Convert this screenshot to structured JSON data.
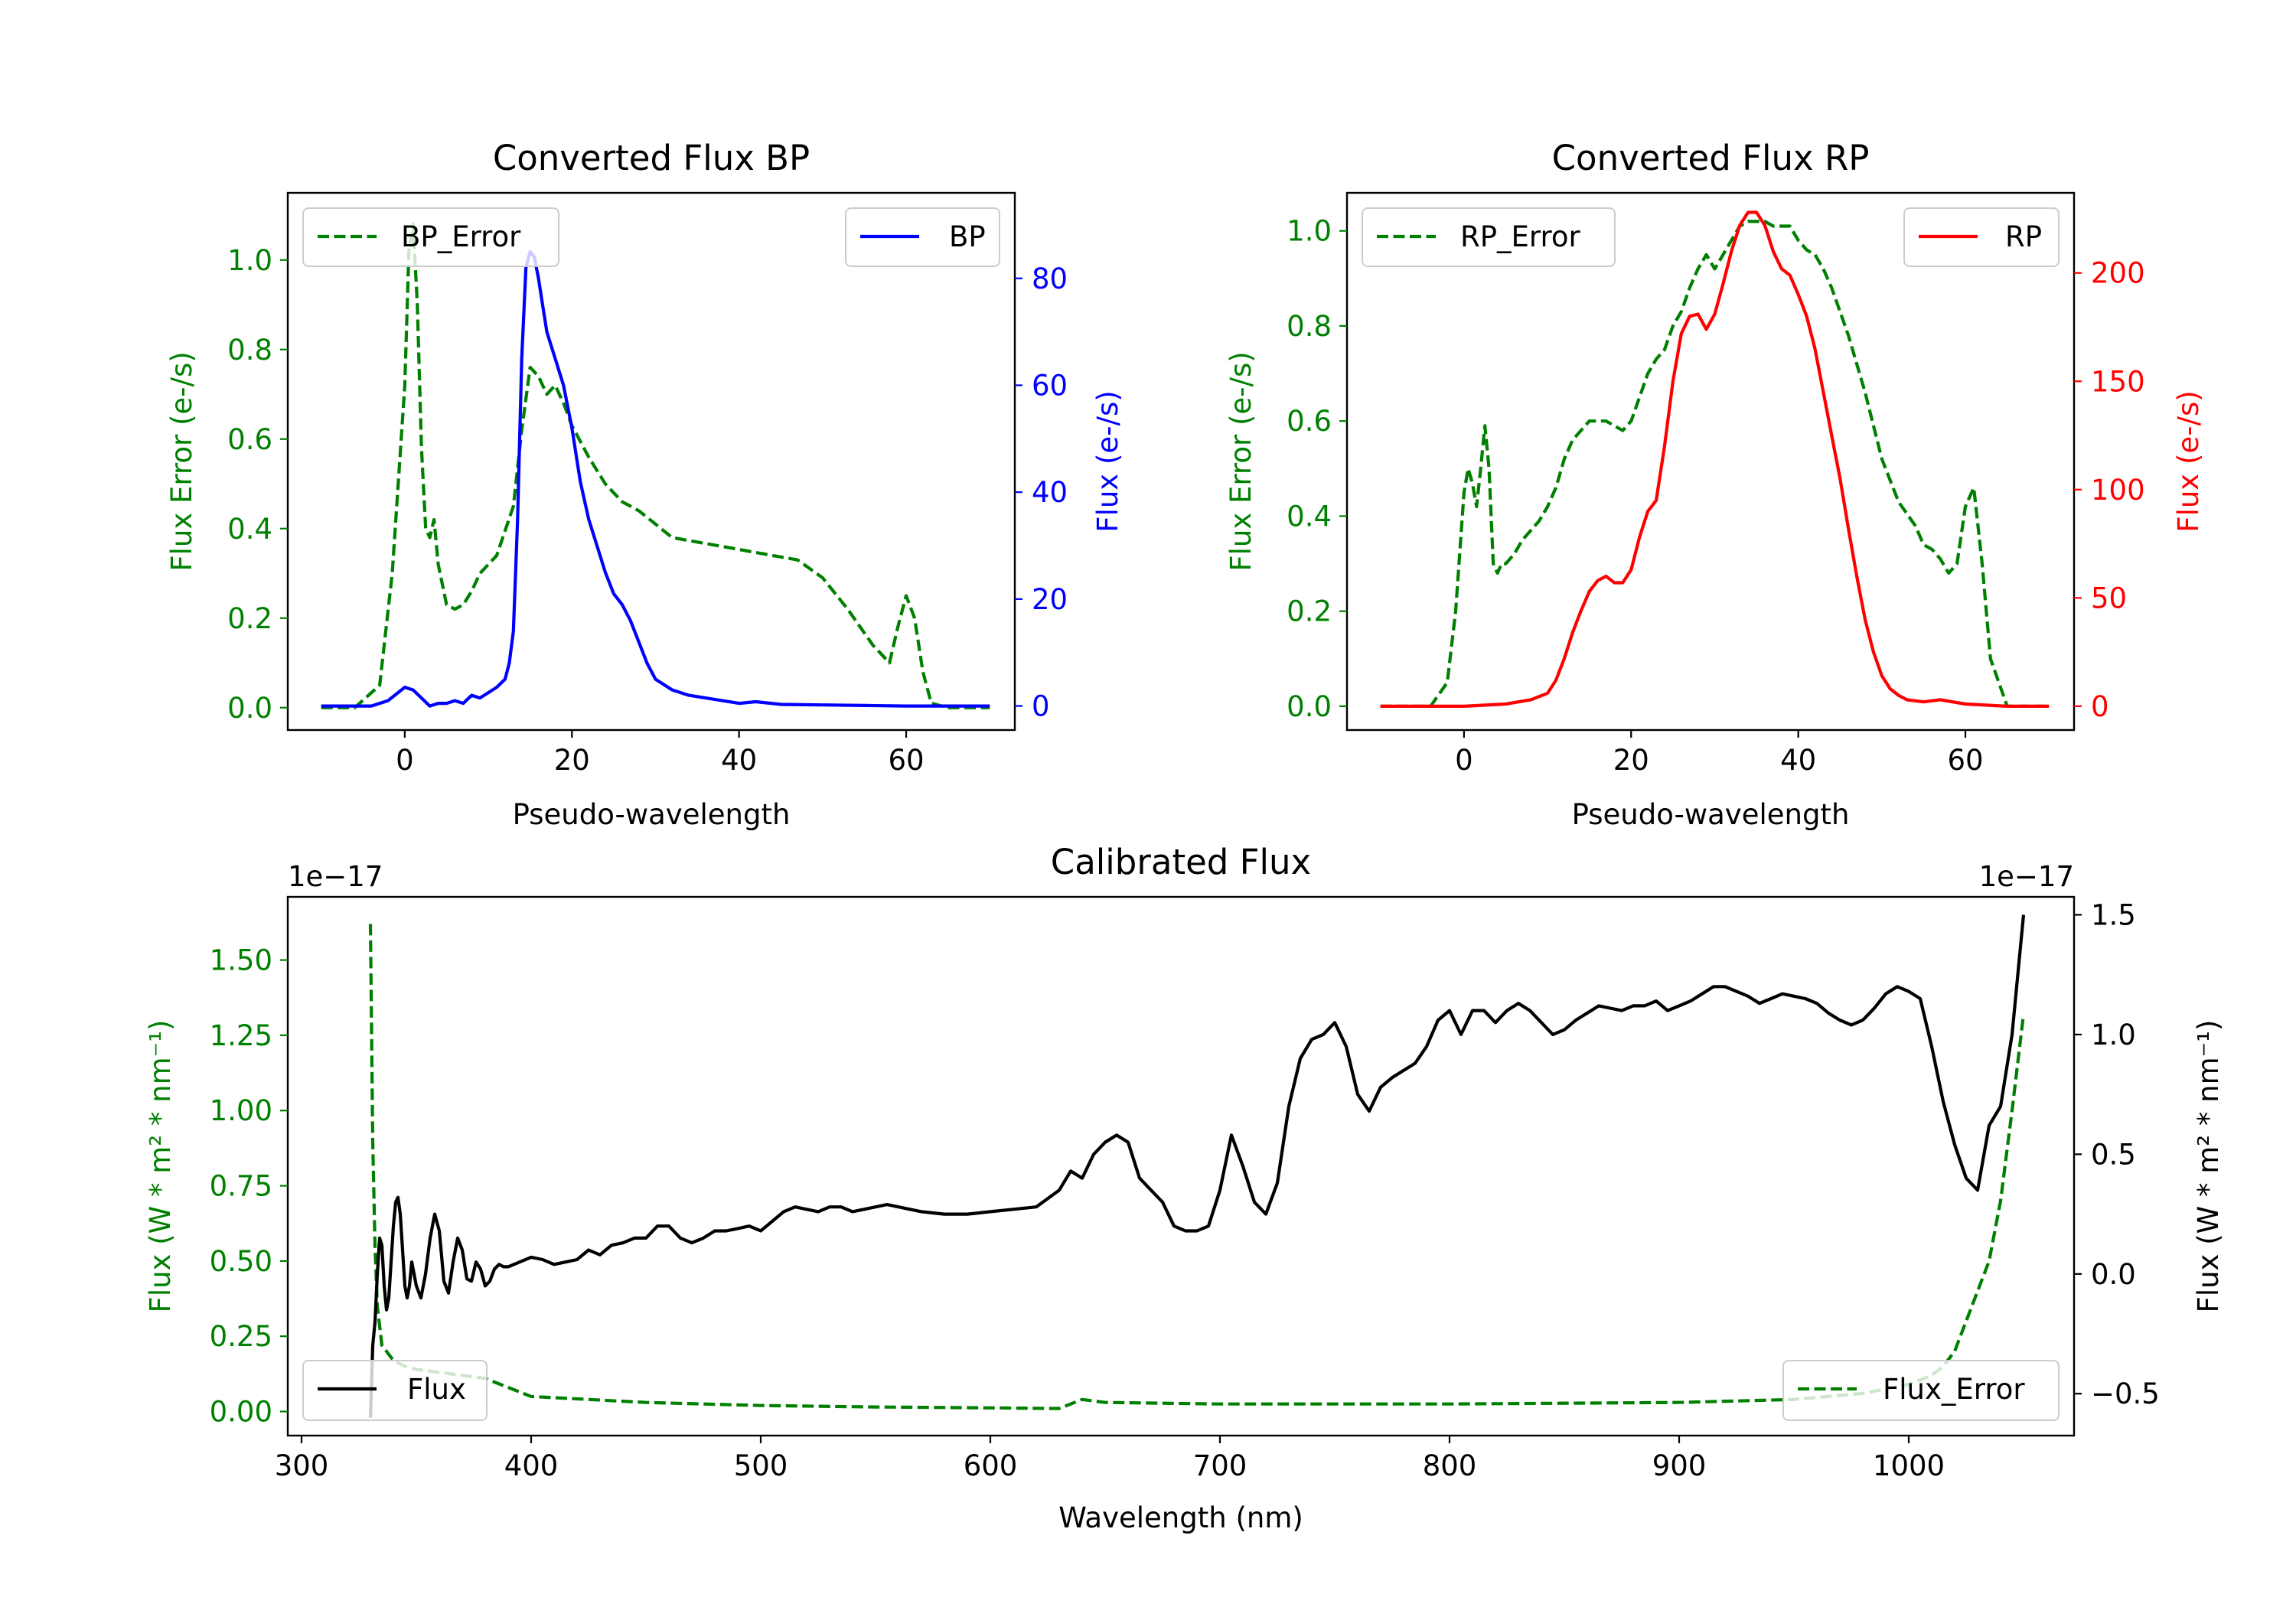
{
  "colors": {
    "error": "#008000",
    "bp": "#0000ff",
    "rp": "#ff0000",
    "flux": "#000000",
    "axis": "#000000"
  },
  "chart_data": [
    {
      "id": "bp",
      "type": "line",
      "title": "Converted Flux BP",
      "xlabel": "Pseudo-wavelength",
      "ylabel_left": "Flux Error (e-/s)",
      "ylabel_right": "Flux (e-/s)",
      "xlim": [
        -14,
        73
      ],
      "ylim_left": [
        -0.05,
        1.15
      ],
      "ylim_right": [
        -4.5,
        96
      ],
      "xticks": [
        0,
        20,
        40,
        60
      ],
      "yticks_left": [
        0.0,
        0.2,
        0.4,
        0.6,
        0.8,
        1.0
      ],
      "yticks_left_labels": [
        "0.0",
        "0.2",
        "0.4",
        "0.6",
        "0.8",
        "1.0"
      ],
      "yticks_right": [
        0,
        20,
        40,
        60,
        80
      ],
      "yticks_right_labels": [
        "0",
        "20",
        "40",
        "60",
        "80"
      ],
      "legend_left": "BP_Error",
      "legend_right": "BP",
      "series": [
        {
          "name": "BP_Error",
          "axis": "left",
          "style": "dashed",
          "color": "#008000",
          "x": [
            -10,
            -6,
            -3,
            -1.5,
            0,
            0.5,
            1,
            1.5,
            2,
            2.5,
            3,
            3.5,
            4,
            5,
            6,
            7,
            8,
            9,
            11,
            13,
            14,
            15,
            16,
            17,
            18,
            19,
            20,
            22,
            24,
            26,
            28,
            30,
            32,
            35,
            38,
            41,
            44,
            47,
            50,
            53,
            56,
            57,
            58,
            59,
            60,
            61,
            62,
            63,
            65,
            68,
            70
          ],
          "y": [
            0.0,
            0.0,
            0.05,
            0.3,
            0.72,
            1.02,
            1.08,
            0.9,
            0.58,
            0.4,
            0.38,
            0.42,
            0.32,
            0.23,
            0.22,
            0.23,
            0.26,
            0.3,
            0.34,
            0.45,
            0.62,
            0.76,
            0.74,
            0.7,
            0.72,
            0.68,
            0.63,
            0.56,
            0.5,
            0.46,
            0.44,
            0.41,
            0.38,
            0.37,
            0.36,
            0.35,
            0.34,
            0.33,
            0.29,
            0.22,
            0.14,
            0.12,
            0.1,
            0.18,
            0.25,
            0.2,
            0.08,
            0.01,
            0.0,
            0.0,
            0.0
          ]
        },
        {
          "name": "BP",
          "axis": "right",
          "style": "solid",
          "color": "#0000ff",
          "x": [
            -10,
            -4,
            -2,
            0,
            1,
            2,
            3,
            4,
            5,
            6,
            7,
            8,
            9,
            10,
            11,
            12,
            12.5,
            13,
            13.5,
            14,
            14.5,
            15,
            15.5,
            16,
            16.5,
            17,
            18,
            19,
            20,
            21,
            22,
            23,
            24,
            25,
            26,
            27,
            28,
            29,
            30,
            32,
            34,
            36,
            38,
            40,
            42,
            45,
            50,
            55,
            60,
            65,
            70
          ],
          "y": [
            0,
            0,
            1,
            3.5,
            3.0,
            1.5,
            0,
            0.5,
            0.5,
            1,
            0.5,
            2,
            1.5,
            2.5,
            3.5,
            5,
            8,
            14,
            35,
            65,
            82,
            85,
            84,
            80,
            75,
            70,
            65,
            60,
            52,
            42,
            35,
            30,
            25,
            21,
            19,
            16,
            12,
            8,
            5,
            3,
            2,
            1.5,
            1,
            0.5,
            0.8,
            0.3,
            0.2,
            0.1,
            0,
            0,
            0
          ]
        }
      ]
    },
    {
      "id": "rp",
      "type": "line",
      "title": "Converted Flux RP",
      "xlabel": "Pseudo-wavelength",
      "ylabel_left": "Flux Error (e-/s)",
      "ylabel_right": "Flux (e-/s)",
      "xlim": [
        -14,
        73
      ],
      "ylim_left": [
        -0.05,
        1.08
      ],
      "ylim_right": [
        -11,
        237
      ],
      "xticks": [
        0,
        20,
        40,
        60
      ],
      "yticks_left": [
        0.0,
        0.2,
        0.4,
        0.6,
        0.8,
        1.0
      ],
      "yticks_left_labels": [
        "0.0",
        "0.2",
        "0.4",
        "0.6",
        "0.8",
        "1.0"
      ],
      "yticks_right": [
        0,
        50,
        100,
        150,
        200
      ],
      "yticks_right_labels": [
        "0",
        "50",
        "100",
        "150",
        "200"
      ],
      "legend_left": "RP_Error",
      "legend_right": "RP",
      "series": [
        {
          "name": "RP_Error",
          "axis": "left",
          "style": "dashed",
          "color": "#008000",
          "x": [
            -10,
            -4,
            -2,
            -1,
            0,
            0.5,
            1,
            1.5,
            2,
            2.5,
            3,
            3.5,
            4,
            4.5,
            5,
            6,
            7,
            8,
            9,
            10,
            11,
            12,
            13,
            14,
            15,
            16,
            17,
            18,
            19,
            20,
            21,
            22,
            23,
            24,
            25,
            26,
            27,
            28,
            29,
            30,
            31,
            32,
            33,
            34,
            35,
            36,
            37,
            38,
            39,
            40,
            41,
            42,
            43,
            44,
            46,
            48,
            50,
            52,
            54,
            55,
            56,
            57,
            58,
            59,
            60,
            61,
            62,
            63,
            65,
            68,
            70
          ],
          "y": [
            0.0,
            0.0,
            0.05,
            0.2,
            0.45,
            0.5,
            0.47,
            0.42,
            0.5,
            0.59,
            0.5,
            0.3,
            0.28,
            0.3,
            0.3,
            0.32,
            0.35,
            0.37,
            0.39,
            0.42,
            0.46,
            0.52,
            0.56,
            0.58,
            0.6,
            0.6,
            0.6,
            0.59,
            0.58,
            0.6,
            0.65,
            0.7,
            0.73,
            0.75,
            0.8,
            0.83,
            0.88,
            0.92,
            0.95,
            0.92,
            0.95,
            0.98,
            1.01,
            1.02,
            1.02,
            1.02,
            1.01,
            1.01,
            1.01,
            0.98,
            0.96,
            0.95,
            0.92,
            0.88,
            0.78,
            0.66,
            0.52,
            0.43,
            0.38,
            0.34,
            0.33,
            0.31,
            0.28,
            0.3,
            0.42,
            0.46,
            0.3,
            0.1,
            0.0,
            0.0,
            0.0
          ]
        },
        {
          "name": "RP",
          "axis": "right",
          "style": "solid",
          "color": "#ff0000",
          "x": [
            -10,
            0,
            5,
            8,
            10,
            11,
            12,
            13,
            14,
            15,
            16,
            17,
            18,
            19,
            20,
            21,
            22,
            23,
            24,
            25,
            26,
            27,
            28,
            29,
            30,
            31,
            32,
            33,
            34,
            35,
            36,
            37,
            38,
            39,
            40,
            41,
            42,
            43,
            44,
            45,
            46,
            47,
            48,
            49,
            50,
            51,
            52,
            53,
            55,
            57,
            60,
            65,
            70
          ],
          "y": [
            0,
            0,
            1,
            3,
            6,
            12,
            22,
            34,
            44,
            53,
            58,
            60,
            57,
            57,
            63,
            78,
            90,
            95,
            120,
            150,
            172,
            180,
            181,
            174,
            181,
            195,
            210,
            222,
            228,
            228,
            222,
            210,
            202,
            199,
            190,
            180,
            165,
            145,
            125,
            105,
            82,
            60,
            40,
            25,
            14,
            8,
            5,
            3,
            2,
            3,
            1,
            0,
            0
          ]
        }
      ]
    },
    {
      "id": "calibrated",
      "type": "line",
      "title": "Calibrated Flux",
      "xlabel": "Wavelength (nm)",
      "ylabel_left": "Flux (W * m² * nm⁻¹)",
      "ylabel_right": "Flux (W * m² * nm⁻¹)",
      "offset_left": "1e−17",
      "offset_right": "1e−17",
      "xlim": [
        294,
        1072
      ],
      "ylim_left": [
        -0.08,
        1.71
      ],
      "ylim_right": [
        -0.675,
        1.575
      ],
      "xticks": [
        300,
        400,
        500,
        600,
        700,
        800,
        900,
        1000
      ],
      "yticks_left": [
        0.0,
        0.25,
        0.5,
        0.75,
        1.0,
        1.25,
        1.5
      ],
      "yticks_left_labels": [
        "0.00",
        "0.25",
        "0.50",
        "0.75",
        "1.00",
        "1.25",
        "1.50"
      ],
      "yticks_right": [
        -0.5,
        0.0,
        0.5,
        1.0,
        1.5
      ],
      "yticks_right_labels": [
        "−0.5",
        "0.0",
        "0.5",
        "1.0",
        "1.5"
      ],
      "legend_left": "Flux",
      "legend_right": "Flux_Error",
      "series": [
        {
          "name": "Flux_Error",
          "axis": "left",
          "style": "dashed",
          "color": "#008000",
          "x": [
            330,
            331,
            332,
            333,
            335,
            340,
            345,
            350,
            360,
            370,
            380,
            390,
            400,
            450,
            500,
            550,
            600,
            630,
            640,
            650,
            700,
            800,
            900,
            950,
            980,
            1000,
            1010,
            1015,
            1020,
            1025,
            1030,
            1035,
            1040,
            1045,
            1050
          ],
          "y": [
            1.62,
            0.9,
            0.55,
            0.35,
            0.22,
            0.17,
            0.15,
            0.14,
            0.13,
            0.12,
            0.11,
            0.08,
            0.05,
            0.03,
            0.02,
            0.015,
            0.012,
            0.01,
            0.04,
            0.03,
            0.025,
            0.025,
            0.03,
            0.04,
            0.06,
            0.09,
            0.12,
            0.15,
            0.2,
            0.3,
            0.4,
            0.5,
            0.7,
            1.0,
            1.32
          ]
        },
        {
          "name": "Flux",
          "axis": "right",
          "style": "solid",
          "color": "#000000",
          "x": [
            330,
            331,
            332,
            333,
            334,
            335,
            336,
            337,
            338,
            339,
            340,
            341,
            342,
            343,
            344,
            345,
            346,
            347,
            348,
            349,
            350,
            352,
            354,
            356,
            358,
            360,
            362,
            364,
            366,
            368,
            370,
            372,
            374,
            376,
            378,
            380,
            382,
            384,
            386,
            388,
            390,
            395,
            400,
            405,
            410,
            415,
            420,
            425,
            430,
            435,
            440,
            445,
            450,
            455,
            460,
            465,
            470,
            475,
            480,
            485,
            490,
            495,
            500,
            505,
            510,
            515,
            520,
            525,
            530,
            535,
            540,
            545,
            550,
            555,
            560,
            570,
            580,
            590,
            600,
            610,
            620,
            630,
            635,
            640,
            645,
            650,
            655,
            660,
            665,
            670,
            675,
            680,
            685,
            690,
            695,
            700,
            705,
            710,
            715,
            720,
            725,
            730,
            735,
            740,
            745,
            750,
            755,
            760,
            765,
            770,
            775,
            780,
            785,
            790,
            795,
            800,
            805,
            810,
            815,
            820,
            825,
            830,
            835,
            840,
            845,
            850,
            855,
            860,
            865,
            870,
            875,
            880,
            885,
            890,
            895,
            900,
            905,
            910,
            915,
            920,
            925,
            930,
            935,
            940,
            945,
            950,
            955,
            960,
            965,
            970,
            975,
            980,
            985,
            990,
            995,
            1000,
            1005,
            1010,
            1015,
            1020,
            1025,
            1030,
            1035,
            1040,
            1045,
            1050
          ],
          "y": [
            -0.6,
            -0.3,
            -0.2,
            0.0,
            0.15,
            0.12,
            -0.05,
            -0.15,
            -0.1,
            0.05,
            0.2,
            0.3,
            0.32,
            0.25,
            0.1,
            -0.05,
            -0.1,
            -0.05,
            0.05,
            0.0,
            -0.05,
            -0.1,
            0.0,
            0.15,
            0.25,
            0.18,
            -0.03,
            -0.08,
            0.05,
            0.15,
            0.1,
            -0.02,
            -0.03,
            0.05,
            0.02,
            -0.05,
            -0.03,
            0.02,
            0.04,
            0.03,
            0.03,
            0.05,
            0.07,
            0.06,
            0.04,
            0.05,
            0.06,
            0.1,
            0.08,
            0.12,
            0.13,
            0.15,
            0.15,
            0.2,
            0.2,
            0.15,
            0.13,
            0.15,
            0.18,
            0.18,
            0.19,
            0.2,
            0.18,
            0.22,
            0.26,
            0.28,
            0.27,
            0.26,
            0.28,
            0.28,
            0.26,
            0.27,
            0.28,
            0.29,
            0.28,
            0.26,
            0.25,
            0.25,
            0.26,
            0.27,
            0.28,
            0.35,
            0.43,
            0.4,
            0.5,
            0.55,
            0.58,
            0.55,
            0.4,
            0.35,
            0.3,
            0.2,
            0.18,
            0.18,
            0.2,
            0.35,
            0.58,
            0.45,
            0.3,
            0.25,
            0.38,
            0.7,
            0.9,
            0.98,
            1.0,
            1.05,
            0.95,
            0.75,
            0.68,
            0.78,
            0.82,
            0.85,
            0.88,
            0.95,
            1.06,
            1.1,
            1.0,
            1.1,
            1.1,
            1.05,
            1.1,
            1.13,
            1.1,
            1.05,
            1.0,
            1.02,
            1.06,
            1.09,
            1.12,
            1.11,
            1.1,
            1.12,
            1.12,
            1.14,
            1.1,
            1.12,
            1.14,
            1.17,
            1.2,
            1.2,
            1.18,
            1.16,
            1.13,
            1.15,
            1.17,
            1.16,
            1.15,
            1.13,
            1.09,
            1.06,
            1.04,
            1.06,
            1.11,
            1.17,
            1.2,
            1.18,
            1.15,
            0.95,
            0.72,
            0.54,
            0.4,
            0.35,
            0.62,
            0.7,
            1.0,
            1.5
          ]
        }
      ]
    }
  ]
}
